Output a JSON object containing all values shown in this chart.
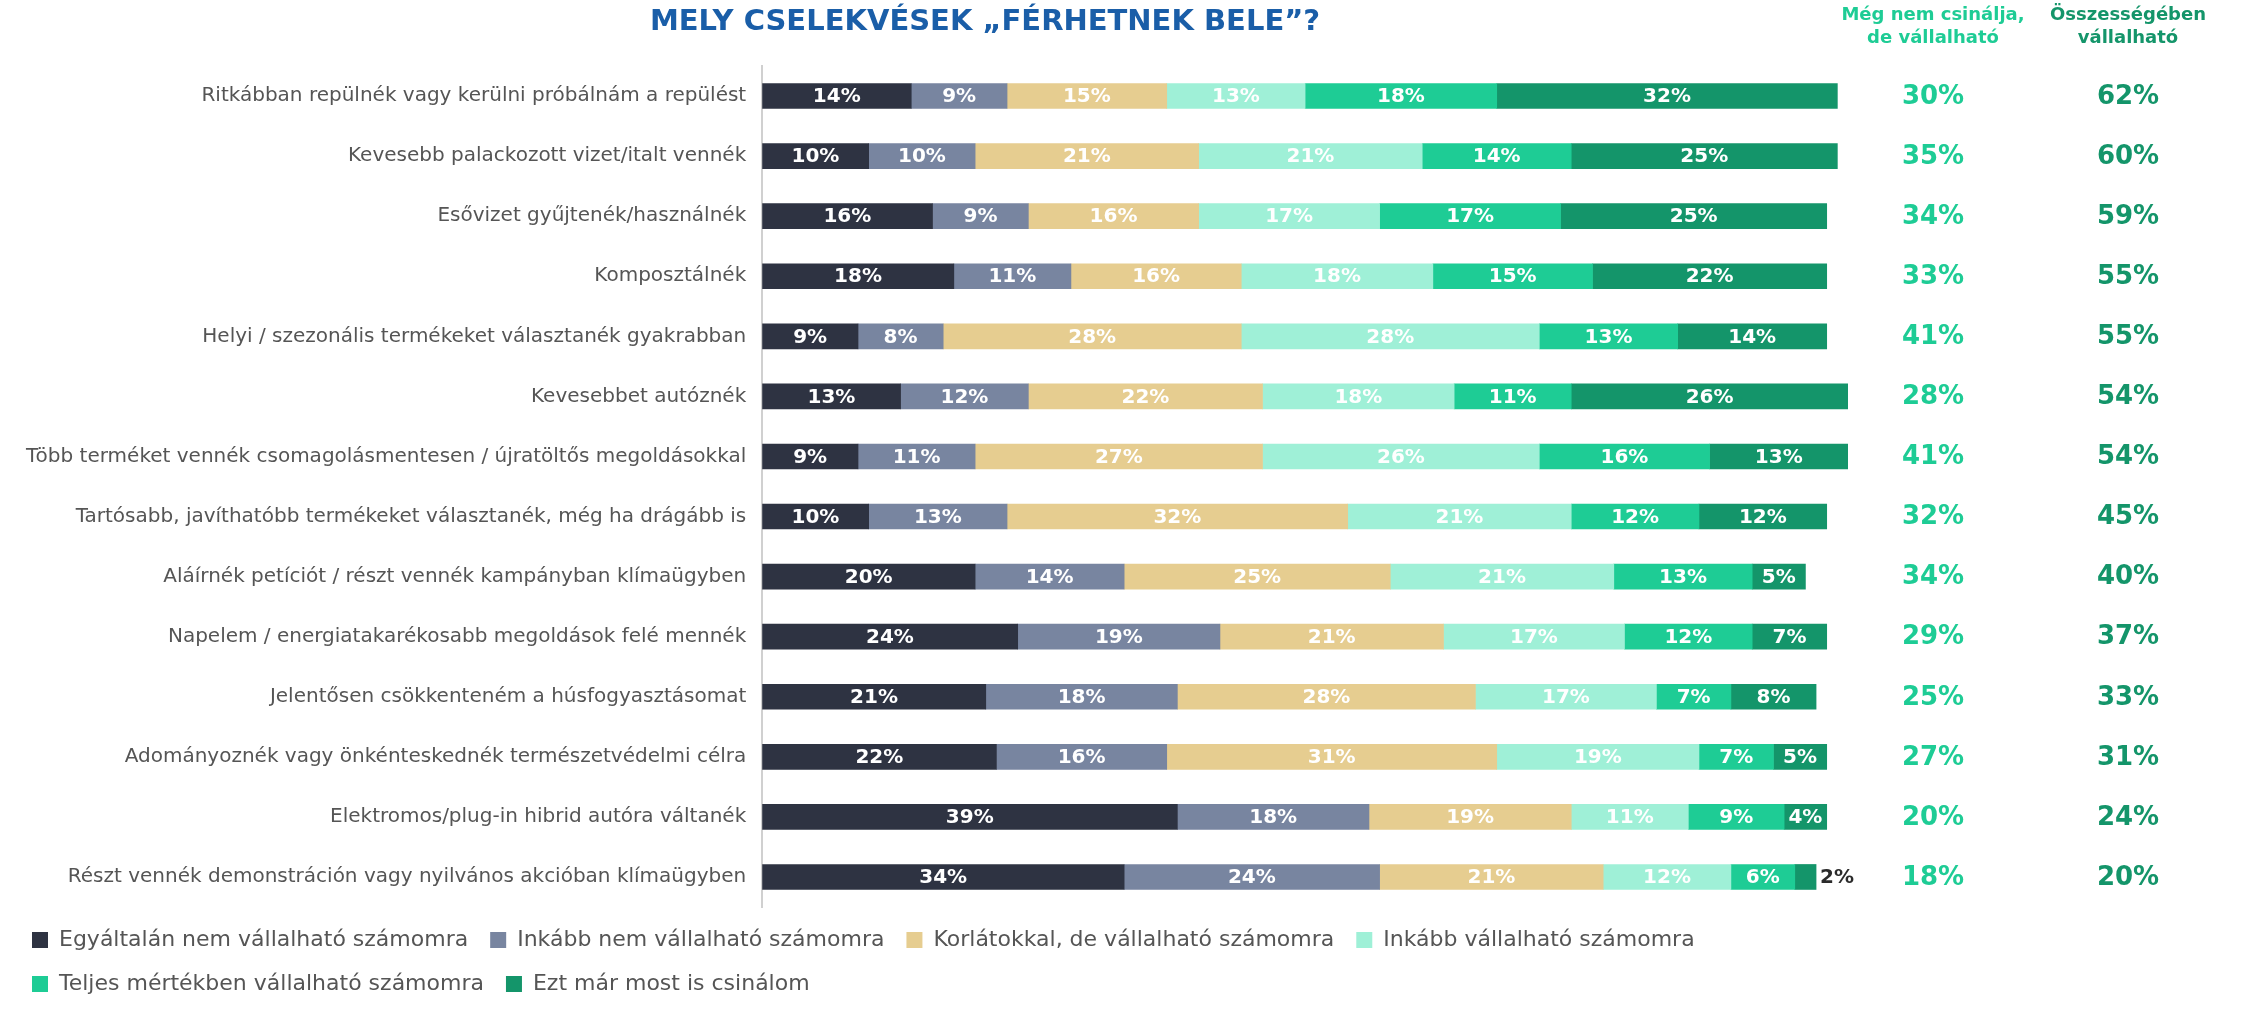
{
  "chart_data": {
    "type": "bar",
    "orientation": "horizontal",
    "stacked": true,
    "title": "MELY CSELEKVÉSEK „FÉRHETNEK BELE”?",
    "legend": "bottom",
    "grid": false,
    "categories": [
      "Ritkábban repülnék vagy kerülni próbálnám a repülést",
      "Kevesebb palackozott vizet/italt vennék",
      "Esővizet gyűjtenék/használnék",
      "Komposztálnék",
      "Helyi / szezonális termékeket választanék gyakrabban",
      "Kevesebbet autóznék",
      "Több terméket vennék csomagolásmentesen / újratöltős megoldásokkal",
      "Tartósabb, javíthatóbb termékeket választanék, még ha drágább is",
      "Aláírnék petíciót / részt vennék kampányban klímaügyben",
      "Napelem / energiatakarékosabb megoldások felé mennék",
      "Jelentősen csökkenteném a húsfogyasztásomat",
      "Adományoznék vagy önkénteskednék természetvédelmi célra",
      "Elektromos/plug-in hibrid autóra váltanék",
      "Részt vennék demonstráción vagy nyilvános akcióban klímaügyben"
    ],
    "series": [
      {
        "name": "Egyáltalán nem vállalható számomra",
        "color": "#2e3342",
        "values": [
          14,
          10,
          16,
          18,
          9,
          13,
          9,
          10,
          20,
          24,
          21,
          22,
          39,
          34
        ],
        "value_labels": [
          "14%",
          "10%",
          "16%",
          "18%",
          "9%",
          "13%",
          "9%",
          "10%",
          "20%",
          "24%",
          "21%",
          "22%",
          "39%",
          "34%"
        ]
      },
      {
        "name": "Inkább nem vállalható számomra",
        "color": "#7885a0",
        "values": [
          9,
          10,
          9,
          11,
          8,
          12,
          11,
          13,
          14,
          19,
          18,
          16,
          18,
          24
        ],
        "value_labels": [
          "9%",
          "10%",
          "9%",
          "11%",
          "8%",
          "12%",
          "11%",
          "13%",
          "14%",
          "19%",
          "18%",
          "16%",
          "18%",
          "24%"
        ]
      },
      {
        "name": "Korlátokkal, de vállalható számomra",
        "color": "#e6cd90",
        "values": [
          15,
          21,
          16,
          16,
          28,
          22,
          27,
          32,
          25,
          21,
          28,
          31,
          19,
          21
        ],
        "value_labels": [
          "15%",
          "21%",
          "16%",
          "16%",
          "28%",
          "22%",
          "27%",
          "32%",
          "25%",
          "21%",
          "28%",
          "31%",
          "19%",
          "21%"
        ]
      },
      {
        "name": "Inkább vállalható számomra",
        "color": "#9ff0d7",
        "values": [
          13,
          21,
          17,
          18,
          28,
          18,
          26,
          21,
          21,
          17,
          17,
          19,
          11,
          12
        ],
        "value_labels": [
          "13%",
          "21%",
          "17%",
          "18%",
          "28%",
          "18%",
          "26%",
          "21%",
          "21%",
          "17%",
          "17%",
          "19%",
          "11%",
          "12%"
        ]
      },
      {
        "name": "Teljes mértékben vállalható számomra",
        "color": "#1ecc95",
        "values": [
          18,
          14,
          17,
          15,
          13,
          11,
          16,
          12,
          13,
          12,
          7,
          7,
          9,
          6
        ],
        "value_labels": [
          "18%",
          "14%",
          "17%",
          "15%",
          "13%",
          "11%",
          "16%",
          "12%",
          "13%",
          "12%",
          "7%",
          "7%",
          "9%",
          "6%"
        ]
      },
      {
        "name": "Ezt már most is csinálom",
        "color": "#14956a",
        "values": [
          32,
          25,
          25,
          22,
          14,
          26,
          13,
          12,
          5,
          7,
          8,
          5,
          4,
          2
        ],
        "value_labels": [
          "32%",
          "25%",
          "25%",
          "22%",
          "14%",
          "26%",
          "13%",
          "12%",
          "5%",
          "7%",
          "8%",
          "5%",
          "4%",
          "2%"
        ]
      }
    ],
    "annotations": [
      "Még nem csinálja,\nde vállalható",
      "Összességében\nvállalható",
      "30%",
      "62%",
      "35%",
      "60%",
      "34%",
      "59%",
      "33%",
      "55%",
      "41%",
      "55%",
      "28%",
      "54%",
      "41%",
      "54%",
      "32%",
      "45%",
      "34%",
      "40%",
      "29%",
      "37%",
      "25%",
      "33%",
      "27%",
      "31%",
      "20%",
      "24%",
      "18%",
      "20%"
    ]
  }
}
